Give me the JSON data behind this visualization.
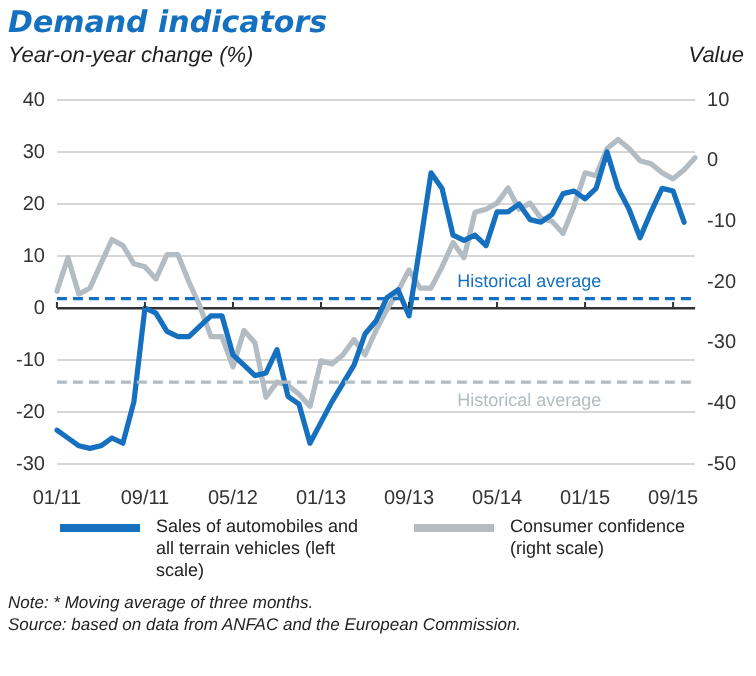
{
  "chart_data": {
    "type": "line",
    "title": "Demand indicators",
    "ylabel": "Year-on-year change (%)",
    "y2label": "Value",
    "categories": [
      "01/11",
      null,
      null,
      null,
      null,
      null,
      null,
      null,
      "09/11",
      null,
      null,
      null,
      null,
      null,
      null,
      null,
      "05/12",
      null,
      null,
      null,
      null,
      null,
      null,
      null,
      "01/13",
      null,
      null,
      null,
      null,
      null,
      null,
      null,
      "09/13",
      null,
      null,
      null,
      null,
      null,
      null,
      null,
      "05/14",
      null,
      null,
      null,
      null,
      null,
      null,
      null,
      "01/15",
      null,
      null,
      null,
      null,
      null,
      null,
      null,
      "09/15",
      null,
      null
    ],
    "series": [
      {
        "name": "Sales of automobiles and all terrain vehicles (left scale)",
        "color": "#1571bf",
        "axis": "y",
        "values": [
          -23.5,
          -25,
          -26.5,
          -27,
          -26.5,
          -25,
          -26,
          -18,
          0,
          -1,
          -4.5,
          -5.5,
          -5.5,
          -3.5,
          -1.5,
          -1.5,
          -9,
          -11,
          -13,
          -12.5,
          -8,
          -17,
          -18.5,
          -26,
          -22,
          -18,
          -14.5,
          -11,
          -5,
          -2.5,
          2,
          3.5,
          -1.5,
          12,
          26,
          23,
          14,
          13,
          14,
          12,
          18.5,
          18.5,
          20,
          17,
          16.5,
          18,
          22,
          22.5,
          21,
          23,
          30,
          23,
          19,
          13.5,
          18.5,
          23,
          22.5,
          16.5,
          null
        ]
      },
      {
        "name": "Consumer confidence (right scale)",
        "color": "#b3bcc2",
        "axis": "y2",
        "values": [
          -21.5,
          -16,
          -22,
          -21,
          -17,
          -13,
          -14,
          -17,
          -17.5,
          -19.5,
          -15.5,
          -15.5,
          -20,
          -24,
          -29,
          -29,
          -34,
          -28,
          -30,
          -39,
          -36.5,
          -37,
          -38.5,
          -40.5,
          -33,
          -33.5,
          -32,
          -29.5,
          -32,
          -28,
          -24.5,
          -21.5,
          -18,
          -21,
          -21,
          -17.5,
          -13.5,
          -16,
          -8.5,
          -8,
          -7,
          -4.5,
          -8,
          -7,
          -9.5,
          -10,
          -12,
          -7.5,
          -2,
          -2.5,
          2,
          3.5,
          2,
          0,
          -0.5,
          -2,
          -3,
          -1.5,
          0.5
        ]
      }
    ],
    "ylim": [
      -30,
      40
    ],
    "yticks": [
      -30,
      -20,
      -10,
      0,
      10,
      20,
      30,
      40
    ],
    "y2lim": [
      -50,
      10
    ],
    "y2ticks": [
      -50,
      -40,
      -30,
      -20,
      -10,
      0,
      10
    ],
    "ref_lines": [
      {
        "axis": "y",
        "value": 1.8,
        "label": "Historical average",
        "color": "#1571bf",
        "line_style": "dashed"
      },
      {
        "axis": "y2",
        "value": -36.5,
        "label": "Historical average",
        "color": "#b3bcc2",
        "line_style": "dashed"
      }
    ],
    "grid": "y",
    "legend": "bottom",
    "line_style": "solid",
    "marker": "none",
    "annotations": [
      "Note: * Moving average of three months.",
      "Source: based on data from ANFAC and the European Commission."
    ]
  }
}
